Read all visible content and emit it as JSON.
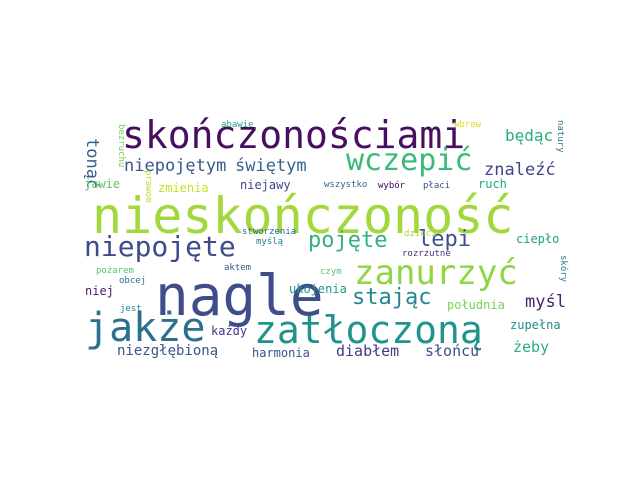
{
  "words": [
    {
      "key": "nieskonczonosc",
      "text": "nieskończoność",
      "color": "#a2d83b"
    },
    {
      "key": "nagle",
      "text": "nagle",
      "color": "#3f4d8a"
    },
    {
      "key": "skonczonosciami",
      "text": "skończonościami",
      "color": "#470e61"
    },
    {
      "key": "jakze",
      "text": "jakże",
      "color": "#2d708e"
    },
    {
      "key": "zatloczona",
      "text": "zatłoczoną",
      "color": "#20938c"
    },
    {
      "key": "zanurzyc",
      "text": "zanurzyć",
      "color": "#8fd644"
    },
    {
      "key": "wczepic",
      "text": "wczepić",
      "color": "#3aba76"
    },
    {
      "key": "niepojete",
      "text": "niepojęte",
      "color": "#3e4c8a"
    },
    {
      "key": "pojete",
      "text": "pojęte",
      "color": "#33b27d"
    },
    {
      "key": "stajac",
      "text": "stając",
      "color": "#24868e"
    },
    {
      "key": "lepi",
      "text": "lepi",
      "color": "#3b538b"
    },
    {
      "key": "niepojetym",
      "text": "niepojętym",
      "color": "#39568c"
    },
    {
      "key": "swietym",
      "text": "świętym",
      "color": "#34618d"
    },
    {
      "key": "znalezc",
      "text": "znaleźć",
      "color": "#404588"
    },
    {
      "key": "bedac",
      "text": "będąc",
      "color": "#28ae80"
    },
    {
      "key": "tonac",
      "text": "tonąć",
      "color": "#34608d"
    },
    {
      "key": "mysl",
      "text": "myśl",
      "color": "#482173"
    },
    {
      "key": "niezglebiona",
      "text": "niezgłębioną",
      "color": "#3a548c"
    },
    {
      "key": "diablem",
      "text": "diabłem",
      "color": "#443983"
    },
    {
      "key": "sloncu",
      "text": "słońcu",
      "color": "#3d4e8a"
    },
    {
      "key": "zeby",
      "text": "żeby",
      "color": "#2ab07f"
    },
    {
      "key": "poludnia",
      "text": "południa",
      "color": "#7ad151"
    },
    {
      "key": "zupelna",
      "text": "zupełna",
      "color": "#238a8d"
    },
    {
      "key": "harmonia",
      "text": "harmonia",
      "color": "#39558c"
    },
    {
      "key": "kazdy",
      "text": "każdy",
      "color": "#453781"
    },
    {
      "key": "niej",
      "text": "niej",
      "color": "#481b6d"
    },
    {
      "key": "ukojenia",
      "text": "ukojenia",
      "color": "#1f988b"
    },
    {
      "key": "cieplo",
      "text": "ciepło",
      "color": "#1f9e89"
    },
    {
      "key": "ruch",
      "text": "ruch",
      "color": "#22a884"
    },
    {
      "key": "niejawy",
      "text": "niejawy",
      "color": "#404688"
    },
    {
      "key": "zmienia",
      "text": "zmienia",
      "color": "#c8e020"
    },
    {
      "key": "jawie",
      "text": "jawie",
      "color": "#5ec962"
    },
    {
      "key": "wszystko",
      "text": "wszystko",
      "color": "#31688e"
    },
    {
      "key": "wybor",
      "text": "wybór",
      "color": "#440154"
    },
    {
      "key": "placi",
      "text": "płaci",
      "color": "#3b528b"
    },
    {
      "key": "abawie",
      "text": "abawie",
      "color": "#22a785"
    },
    {
      "key": "wbrew",
      "text": "wbrew",
      "color": "#d8e219"
    },
    {
      "key": "natury",
      "text": "natury",
      "color": "#2c728e"
    },
    {
      "key": "bezruchu",
      "text": "bezruchu",
      "color": "#75d054"
    },
    {
      "key": "prawom",
      "text": "prawom",
      "color": "#bddf26"
    },
    {
      "key": "stworzenia",
      "text": "stworzenia",
      "color": "#31688e"
    },
    {
      "key": "mysla",
      "text": "myślą",
      "color": "#26828e"
    },
    {
      "key": "dzieci",
      "text": "dzieci",
      "color": "#9fda3a"
    },
    {
      "key": "rozrzutne",
      "text": "rozrzutne",
      "color": "#46327e"
    },
    {
      "key": "pozarem",
      "text": "pożarem",
      "color": "#52c569"
    },
    {
      "key": "obcej",
      "text": "obcej",
      "color": "#2e6f8e"
    },
    {
      "key": "aktem",
      "text": "aktem",
      "color": "#365c8d"
    },
    {
      "key": "czym",
      "text": "czym",
      "color": "#54c568"
    },
    {
      "key": "jest",
      "text": "jest",
      "color": "#287d8e"
    },
    {
      "key": "skory",
      "text": "skóry",
      "color": "#2a788e"
    }
  ]
}
